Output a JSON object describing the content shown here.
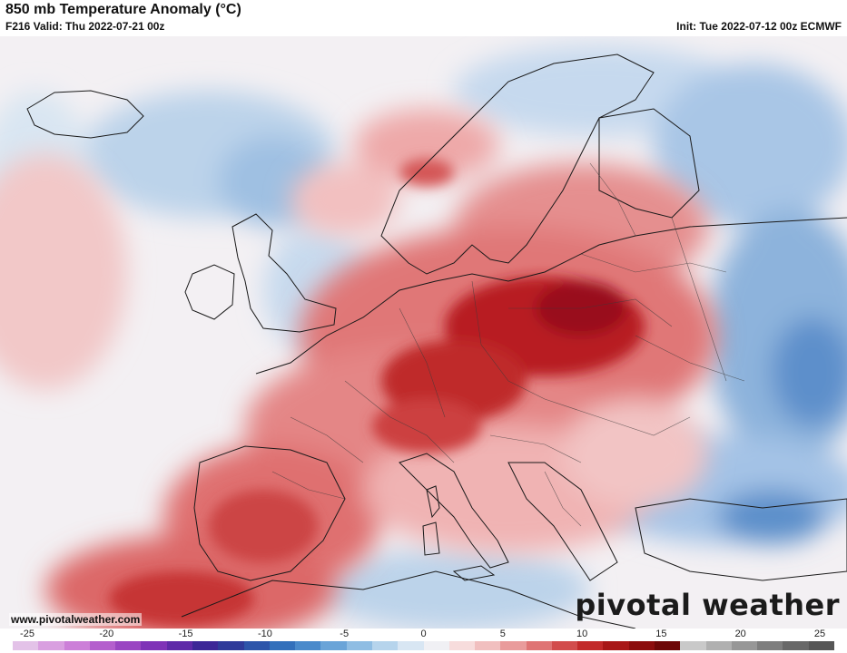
{
  "header": {
    "title": "850 mb Temperature Anomaly (°C)",
    "valid": "F216 Valid: Thu 2022-07-21 00z",
    "init": "Init: Tue 2022-07-12 00z ECMWF"
  },
  "footer": {
    "website": "www.pivotalweather.com",
    "brand": "pivotal weather"
  },
  "colorbar": {
    "ticks": [
      "-25",
      "-20",
      "-15",
      "-10",
      "-5",
      "0",
      "5",
      "10",
      "15",
      "20",
      "25"
    ],
    "colors": [
      "#e3c2e8",
      "#d99fe0",
      "#cc7fd8",
      "#b45fcd",
      "#9a46c2",
      "#7f33b7",
      "#5f2aa8",
      "#3c2797",
      "#2f3b9a",
      "#2d55aa",
      "#3370bb",
      "#4a8acb",
      "#6aa4d8",
      "#8fbde3",
      "#b6d4ec",
      "#d8e6f3",
      "#f0f0f4",
      "#f7dcdc",
      "#f1bfbf",
      "#e99b9b",
      "#df7474",
      "#d24c4c",
      "#c22a2a",
      "#a81717",
      "#8c0c0c",
      "#6e0606",
      "#c9c9c9",
      "#b0b0b0",
      "#979797",
      "#7e7e7e",
      "#686868",
      "#565656"
    ]
  },
  "map": {
    "region": "Europe",
    "description_colors": {
      "warm_core": "#a8121c",
      "warm_mid": "#d24c4c",
      "warm_light": "#f1bfbf",
      "cool_light": "#c9dcef",
      "cool_mid": "#8fb5dc",
      "cool_core": "#4f86c6"
    }
  }
}
